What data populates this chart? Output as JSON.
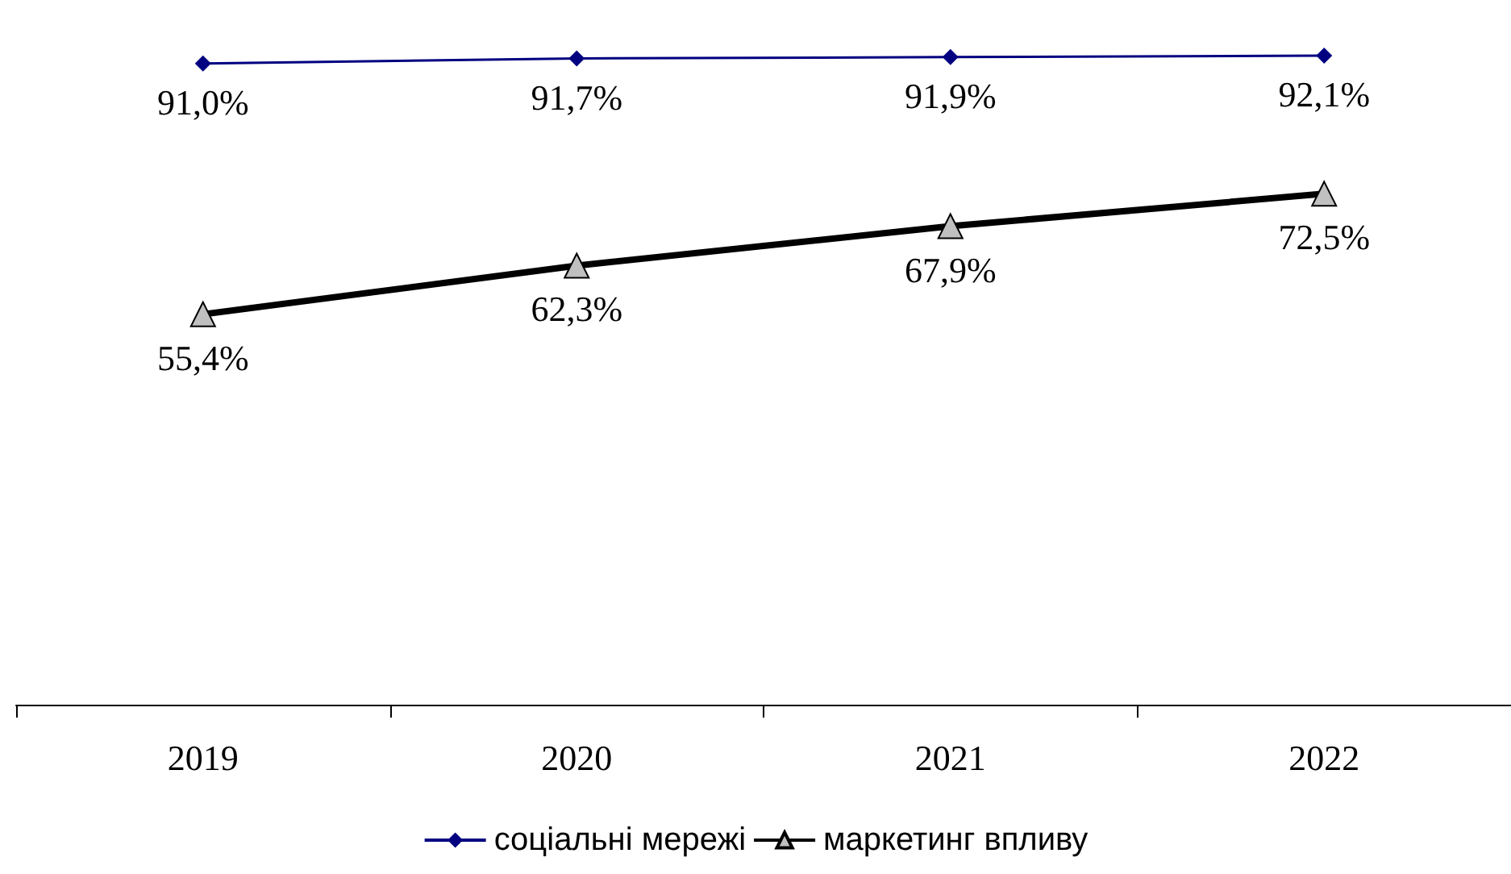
{
  "chart_data": {
    "type": "line",
    "categories": [
      "2019",
      "2020",
      "2021",
      "2022"
    ],
    "legend": "bottom",
    "grid": false,
    "series": [
      {
        "name": "соціальні мережі",
        "color": "#000080",
        "marker": "diamond",
        "values": [
          91.0,
          91.7,
          91.9,
          92.1
        ],
        "value_labels": [
          "91,0%",
          "91,7%",
          "91,9%",
          "92,1%"
        ]
      },
      {
        "name": "маркетинг впливу",
        "color": "#000000",
        "marker": "triangle",
        "values": [
          55.4,
          62.3,
          67.9,
          72.5
        ],
        "value_labels": [
          "55,4%",
          "62,3%",
          "67,9%",
          "72,5%"
        ]
      }
    ]
  }
}
